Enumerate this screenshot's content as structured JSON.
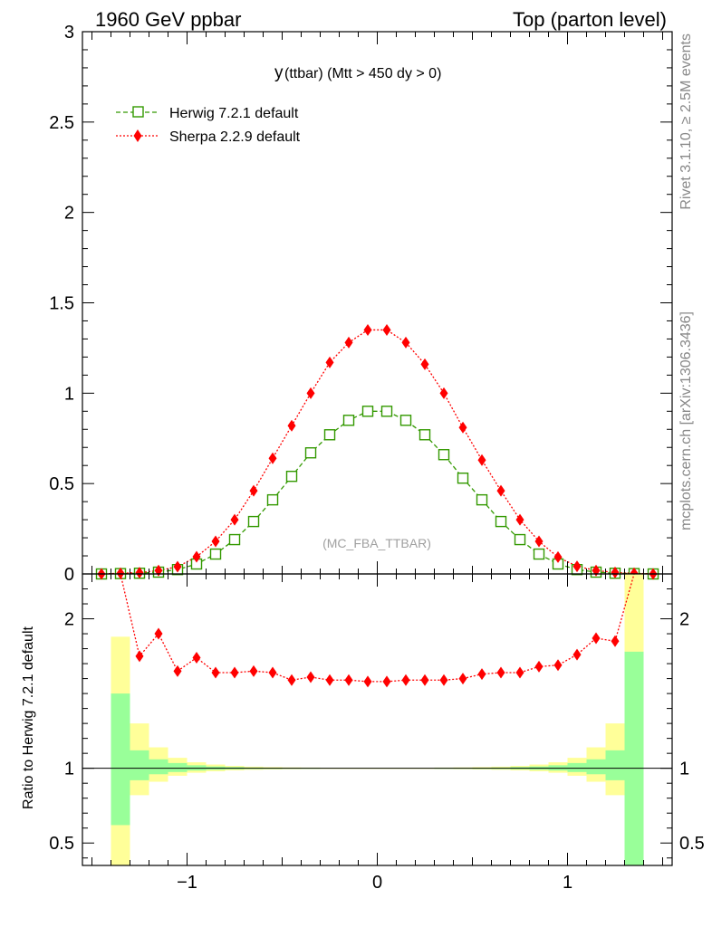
{
  "header": {
    "left_title": "1960 GeV ppbar",
    "right_title": "Top (parton level)",
    "plot_title_main": "y",
    "plot_title_rest": " (ttbar) (Mtt > 450 dy > 0)",
    "watermark": "(MC_FBA_TTBAR)",
    "side_rivet": "Rivet 3.1.10, ≥ 2.5M events",
    "side_mcplots": "mcplots.cern.ch [arXiv:1306.3436]"
  },
  "legend": {
    "herwig": "Herwig 7.2.1 default",
    "sherpa": "Sherpa 2.2.9 default"
  },
  "colors": {
    "herwig": "#339900",
    "sherpa": "#ff0000",
    "band_inner": "#99ff99",
    "band_outer": "#ffff99"
  },
  "chart_data": [
    {
      "type": "line",
      "xlim": [
        -1.55,
        1.55
      ],
      "ylim": [
        0,
        3.0
      ],
      "yticks": [
        {
          "v": 0,
          "label": "0"
        },
        {
          "v": 0.5,
          "label": "0.5"
        },
        {
          "v": 1,
          "label": "1"
        },
        {
          "v": 1.5,
          "label": "1.5"
        },
        {
          "v": 2,
          "label": "2"
        },
        {
          "v": 2.5,
          "label": "2.5"
        },
        {
          "v": 3,
          "label": "3"
        }
      ],
      "x": [
        -1.45,
        -1.35,
        -1.25,
        -1.15,
        -1.05,
        -0.95,
        -0.85,
        -0.75,
        -0.65,
        -0.55,
        -0.45,
        -0.35,
        -0.25,
        -0.15,
        -0.05,
        0.05,
        0.15,
        0.25,
        0.35,
        0.45,
        0.55,
        0.65,
        0.75,
        0.85,
        0.95,
        1.05,
        1.15,
        1.25,
        1.35,
        1.45
      ],
      "series": [
        {
          "name": "Herwig 7.2.1 default",
          "values": [
            0.0,
            0.002,
            0.004,
            0.01,
            0.024,
            0.055,
            0.11,
            0.19,
            0.29,
            0.41,
            0.54,
            0.67,
            0.77,
            0.85,
            0.9,
            0.9,
            0.85,
            0.77,
            0.66,
            0.53,
            0.41,
            0.29,
            0.19,
            0.11,
            0.055,
            0.024,
            0.01,
            0.004,
            0.002,
            0.0
          ]
        },
        {
          "name": "Sherpa 2.2.9 default",
          "values": [
            0.0,
            0.004,
            0.007,
            0.019,
            0.04,
            0.095,
            0.18,
            0.3,
            0.46,
            0.64,
            0.82,
            1.0,
            1.17,
            1.28,
            1.35,
            1.35,
            1.28,
            1.16,
            1.0,
            0.81,
            0.63,
            0.46,
            0.3,
            0.18,
            0.093,
            0.042,
            0.019,
            0.008,
            0.004,
            0.0
          ]
        }
      ]
    },
    {
      "type": "line",
      "ylabel": "Ratio to Herwig 7.2.1 default",
      "xlim": [
        -1.55,
        1.55
      ],
      "ylim": [
        0.35,
        2.3
      ],
      "xticks": [
        {
          "v": -1,
          "label": "−1"
        },
        {
          "v": 0,
          "label": "0"
        },
        {
          "v": 1,
          "label": "1"
        }
      ],
      "yticks": [
        {
          "v": 0.5,
          "label": "0.5"
        },
        {
          "v": 1,
          "label": "1"
        },
        {
          "v": 2,
          "label": "2"
        }
      ],
      "x": [
        -1.35,
        -1.25,
        -1.15,
        -1.05,
        -0.95,
        -0.85,
        -0.75,
        -0.65,
        -0.55,
        -0.45,
        -0.35,
        -0.25,
        -0.15,
        -0.05,
        0.05,
        0.15,
        0.25,
        0.35,
        0.45,
        0.55,
        0.65,
        0.75,
        0.85,
        0.95,
        1.05,
        1.15,
        1.25,
        1.35
      ],
      "series": [
        {
          "name": "Sherpa 2.2.9 default",
          "values": [
            2.3,
            1.75,
            1.9,
            1.65,
            1.74,
            1.64,
            1.64,
            1.65,
            1.64,
            1.59,
            1.61,
            1.59,
            1.59,
            1.58,
            1.58,
            1.59,
            1.59,
            1.59,
            1.6,
            1.63,
            1.64,
            1.64,
            1.68,
            1.69,
            1.76,
            1.87,
            1.85,
            2.3
          ]
        }
      ],
      "bands": {
        "edges": [
          -1.4,
          -1.3,
          -1.2,
          -1.1,
          -1.0,
          -0.9,
          -0.8,
          -0.7,
          -0.6,
          -0.5,
          -0.4,
          -0.3,
          -0.2,
          -0.1,
          0.0,
          0.1,
          0.2,
          0.3,
          0.4,
          0.5,
          0.6,
          0.7,
          0.8,
          0.9,
          1.0,
          1.1,
          1.2,
          1.3,
          1.4
        ],
        "inner_lo": [
          0.62,
          0.92,
          0.96,
          0.975,
          0.985,
          0.99,
          0.993,
          0.995,
          0.996,
          0.997,
          0.997,
          0.998,
          0.998,
          0.998,
          0.998,
          0.998,
          0.998,
          0.997,
          0.997,
          0.996,
          0.995,
          0.993,
          0.99,
          0.985,
          0.975,
          0.96,
          0.92,
          0.3
        ],
        "inner_hi": [
          1.5,
          1.12,
          1.06,
          1.035,
          1.02,
          1.012,
          1.008,
          1.005,
          1.004,
          1.003,
          1.003,
          1.002,
          1.002,
          1.002,
          1.002,
          1.002,
          1.002,
          1.003,
          1.003,
          1.004,
          1.005,
          1.008,
          1.012,
          1.02,
          1.035,
          1.06,
          1.12,
          1.78
        ],
        "outer_lo": [
          0.3,
          0.82,
          0.91,
          0.95,
          0.97,
          0.98,
          0.986,
          0.99,
          0.992,
          0.994,
          0.995,
          0.996,
          0.996,
          0.996,
          0.996,
          0.996,
          0.996,
          0.995,
          0.994,
          0.992,
          0.99,
          0.986,
          0.98,
          0.97,
          0.95,
          0.91,
          0.82,
          0.3
        ],
        "outer_hi": [
          1.88,
          1.3,
          1.14,
          1.07,
          1.04,
          1.025,
          1.016,
          1.011,
          1.008,
          1.006,
          1.005,
          1.004,
          1.004,
          1.004,
          1.004,
          1.004,
          1.004,
          1.005,
          1.006,
          1.008,
          1.011,
          1.016,
          1.025,
          1.04,
          1.07,
          1.14,
          1.3,
          2.3
        ]
      }
    }
  ]
}
